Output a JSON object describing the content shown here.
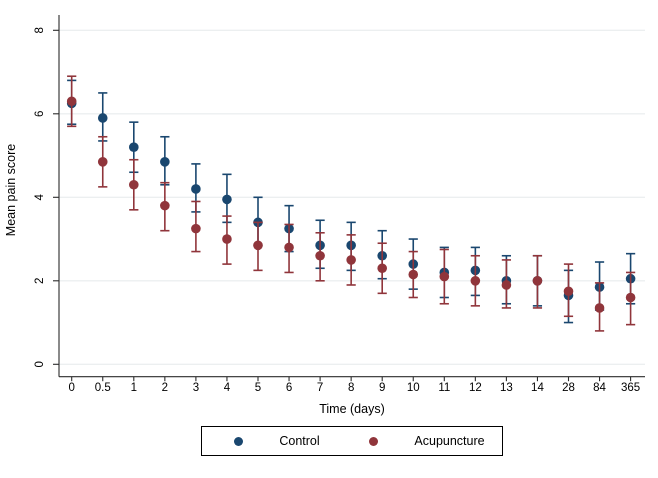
{
  "chart_data": {
    "type": "scatter",
    "subtype": "point-estimates-with-error-bars",
    "title": "",
    "xlabel": "Time (days)",
    "ylabel": "Mean pain score",
    "categories": [
      "0",
      "0.5",
      "1",
      "2",
      "3",
      "4",
      "5",
      "6",
      "7",
      "8",
      "9",
      "10",
      "11",
      "12",
      "13",
      "14",
      "28",
      "84",
      "365"
    ],
    "yticks": [
      0,
      2,
      4,
      6,
      8
    ],
    "ylim": [
      0,
      8.4
    ],
    "grid": "horizontal-light",
    "legend_position": "bottom-center",
    "colors": {
      "axis": "#2b2b2b",
      "grid": "#eceff0",
      "background": "#ffffff",
      "control": "#1a476f",
      "acupuncture": "#90353b"
    },
    "series": [
      {
        "name": "Control",
        "color": "#1a476f",
        "values": [
          6.25,
          5.9,
          5.2,
          4.85,
          4.2,
          3.95,
          3.4,
          3.25,
          2.85,
          2.85,
          2.6,
          2.4,
          2.2,
          2.25,
          2.0,
          2.0,
          1.65,
          1.85,
          2.05
        ],
        "ci_low": [
          5.75,
          5.35,
          4.6,
          4.3,
          3.65,
          3.4,
          2.85,
          2.7,
          2.3,
          2.25,
          2.05,
          1.8,
          1.6,
          1.65,
          1.45,
          1.4,
          1.0,
          1.3,
          1.45
        ],
        "ci_high": [
          6.8,
          6.5,
          5.8,
          5.45,
          4.8,
          4.55,
          4.0,
          3.8,
          3.45,
          3.4,
          3.2,
          3.0,
          2.8,
          2.8,
          2.6,
          2.6,
          2.25,
          2.45,
          2.65
        ]
      },
      {
        "name": "Acupuncture",
        "color": "#90353b",
        "values": [
          6.3,
          4.85,
          4.3,
          3.8,
          3.25,
          3.0,
          2.85,
          2.8,
          2.6,
          2.5,
          2.3,
          2.15,
          2.1,
          2.0,
          1.9,
          2.0,
          1.75,
          1.35,
          1.6
        ],
        "ci_low": [
          5.7,
          4.25,
          3.7,
          3.2,
          2.7,
          2.4,
          2.25,
          2.2,
          2.0,
          1.9,
          1.7,
          1.6,
          1.45,
          1.4,
          1.35,
          1.35,
          1.15,
          0.8,
          0.95
        ],
        "ci_high": [
          6.9,
          5.45,
          4.9,
          4.35,
          3.9,
          3.55,
          3.4,
          3.35,
          3.15,
          3.1,
          2.9,
          2.7,
          2.75,
          2.6,
          2.5,
          2.6,
          2.4,
          1.95,
          2.2
        ]
      }
    ]
  }
}
